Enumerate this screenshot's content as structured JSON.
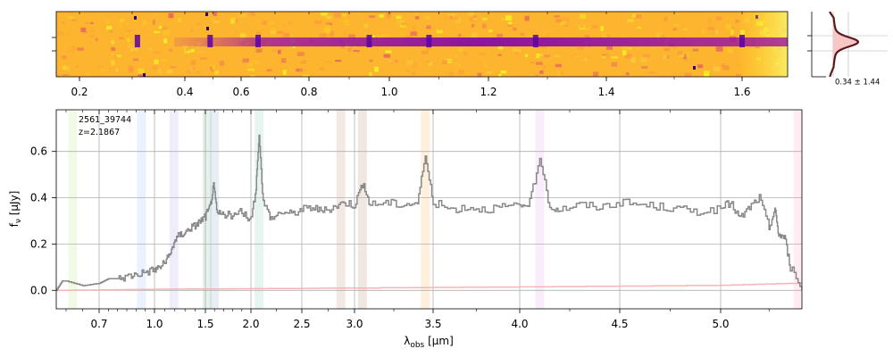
{
  "colors": {
    "spectrum": "#888888",
    "error": "#f4b6b6",
    "grid": "#b0b0b0",
    "profile_line": "#5a1a1a",
    "profile_fill": "#f7c6c6",
    "image_background": "#fdb42f",
    "image_trace": "#7e03a8",
    "line_bands": [
      "#9acd32",
      "#6495ed",
      "#9370db",
      "#2e8b57",
      "#4682b4",
      "#3cb371",
      "#a0522d",
      "#8b4513",
      "#ff8c00",
      "#da70d6",
      "#ff69b4"
    ]
  },
  "chart_data": [
    {
      "id": "spectrum2d",
      "type": "heatmap",
      "title": "",
      "xlabel": "",
      "ylabel": "",
      "xscale": "non-linear",
      "xlim": [
        0.16,
        1.7
      ],
      "xticks": [
        {
          "v": 0.2,
          "label": "0.2"
        },
        {
          "v": 0.4,
          "label": "0.4"
        },
        {
          "v": 0.6,
          "label": "0.6"
        },
        {
          "v": 0.8,
          "label": "0.8"
        },
        {
          "v": 1.0,
          "label": "1.0"
        },
        {
          "v": 1.2,
          "label": "1.2"
        },
        {
          "v": 1.4,
          "label": "1.4"
        },
        {
          "v": 1.6,
          "label": "1.6"
        }
      ],
      "colormap": "plasma",
      "trace_start": 0.38,
      "emission_knots": [
        0.31,
        0.49,
        0.65,
        0.95,
        1.08,
        1.28,
        1.6
      ]
    },
    {
      "id": "profile",
      "type": "line",
      "annotation": "0.34 ± 1.44",
      "description_of_shape": "peaked spatial profile centred on trace"
    },
    {
      "id": "spectrum1d",
      "type": "line",
      "xscale": "non-linear",
      "xlim": [
        0.55,
        5.42
      ],
      "ylim": [
        -0.08,
        0.78
      ],
      "grid": true,
      "legend": "none",
      "xlabel": "λobs [μm]",
      "ylabel": "fν [μJy]",
      "xticks": [
        {
          "v": 0.7,
          "label": "0.7"
        },
        {
          "v": 1.0,
          "label": "1.0"
        },
        {
          "v": 1.5,
          "label": "1.5"
        },
        {
          "v": 2.0,
          "label": "2.0"
        },
        {
          "v": 2.5,
          "label": "2.5"
        },
        {
          "v": 3.0,
          "label": "3.0"
        },
        {
          "v": 3.5,
          "label": "3.5"
        },
        {
          "v": 4.0,
          "label": "4.0"
        },
        {
          "v": 4.5,
          "label": "4.5"
        },
        {
          "v": 5.0,
          "label": "5.0"
        }
      ],
      "yticks": [
        0.0,
        0.2,
        0.4,
        0.6
      ],
      "annotation_lines": [
        "2561_39744",
        "z=2.1867"
      ],
      "line_bands": [
        0.62,
        0.93,
        1.19,
        1.52,
        1.6,
        2.08,
        2.87,
        3.05,
        3.45,
        4.1,
        5.4
      ],
      "flux": {
        "x": [
          0.55,
          0.58,
          0.6,
          0.65,
          0.7,
          0.75,
          0.8,
          0.85,
          0.9,
          0.95,
          1.0,
          1.05,
          1.1,
          1.15,
          1.2,
          1.25,
          1.3,
          1.35,
          1.4,
          1.45,
          1.5,
          1.55,
          1.59,
          1.63,
          1.7,
          1.8,
          1.9,
          2.0,
          2.05,
          2.08,
          2.12,
          2.2,
          2.3,
          2.4,
          2.5,
          2.6,
          2.7,
          2.8,
          2.9,
          3.0,
          3.05,
          3.1,
          3.2,
          3.3,
          3.4,
          3.45,
          3.5,
          3.6,
          3.7,
          3.8,
          3.9,
          4.0,
          4.05,
          4.1,
          4.15,
          4.2,
          4.3,
          4.4,
          4.5,
          4.6,
          4.7,
          4.8,
          4.9,
          5.0,
          5.05,
          5.1,
          5.15,
          5.2,
          5.25,
          5.28,
          5.3,
          5.33,
          5.36,
          5.42
        ],
        "y": [
          0.0,
          0.04,
          0.04,
          0.02,
          0.03,
          0.05,
          0.05,
          0.06,
          0.07,
          0.08,
          0.09,
          0.1,
          0.12,
          0.15,
          0.22,
          0.24,
          0.25,
          0.27,
          0.28,
          0.3,
          0.32,
          0.36,
          0.45,
          0.33,
          0.33,
          0.32,
          0.34,
          0.3,
          0.45,
          0.67,
          0.38,
          0.31,
          0.34,
          0.33,
          0.35,
          0.36,
          0.34,
          0.36,
          0.38,
          0.37,
          0.46,
          0.37,
          0.38,
          0.37,
          0.38,
          0.58,
          0.38,
          0.35,
          0.36,
          0.35,
          0.36,
          0.36,
          0.38,
          0.57,
          0.36,
          0.35,
          0.37,
          0.36,
          0.38,
          0.37,
          0.36,
          0.35,
          0.34,
          0.35,
          0.38,
          0.31,
          0.36,
          0.4,
          0.27,
          0.35,
          0.24,
          0.23,
          0.1,
          0.0
        ]
      },
      "error": {
        "x": [
          0.55,
          1.0,
          2.0,
          3.0,
          4.0,
          5.0,
          5.35,
          5.42
        ],
        "y": [
          0.0,
          0.005,
          0.007,
          0.01,
          0.015,
          0.022,
          0.03,
          0.03
        ]
      }
    }
  ]
}
